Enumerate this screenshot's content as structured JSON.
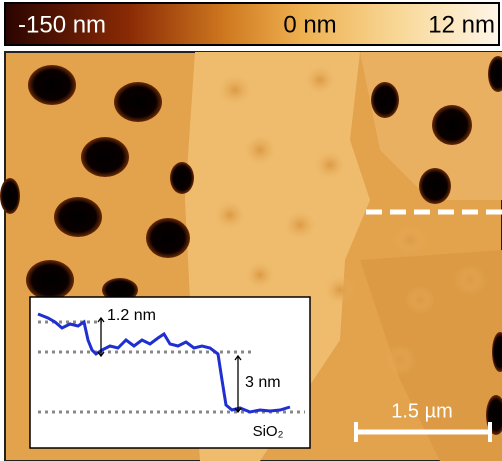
{
  "colorbar": {
    "labels": [
      "-150 nm",
      "0 nm",
      "12 nm"
    ]
  },
  "inset": {
    "step_top": "1.2 nm",
    "step_bottom": "3 nm",
    "substrate": "SiO₂"
  },
  "scale_bar": {
    "label": "1.5 µm"
  }
}
